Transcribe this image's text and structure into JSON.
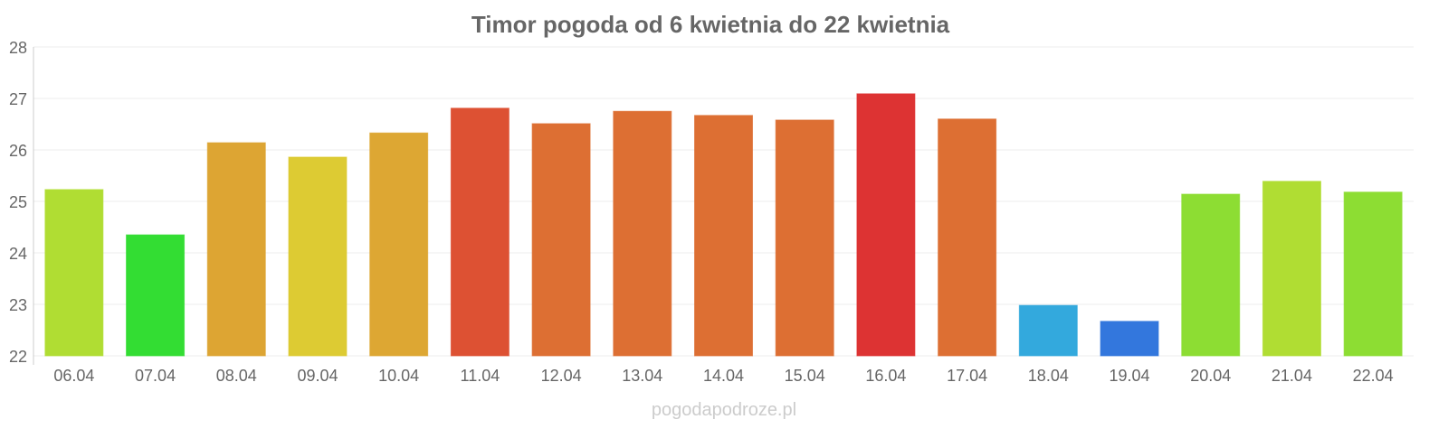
{
  "chart_data": {
    "type": "bar",
    "title": "Timor pogoda od 6 kwietnia do 22 kwietnia",
    "xlabel": "",
    "ylabel": "",
    "ylim": [
      22,
      28
    ],
    "yticks": [
      22,
      23,
      24,
      25,
      26,
      27,
      28
    ],
    "grid": true,
    "categories": [
      "06.04",
      "07.04",
      "08.04",
      "09.04",
      "10.04",
      "11.04",
      "12.04",
      "13.04",
      "14.04",
      "15.04",
      "16.04",
      "17.04",
      "18.04",
      "19.04",
      "20.04",
      "21.04",
      "22.04"
    ],
    "values": [
      25.23,
      24.35,
      26.14,
      25.86,
      26.33,
      26.81,
      26.51,
      26.75,
      26.67,
      26.58,
      27.09,
      26.6,
      22.98,
      22.67,
      25.14,
      25.39,
      25.18
    ],
    "colors": [
      "#b0dd33",
      "#33dd33",
      "#dda533",
      "#ddcb33",
      "#dda733",
      "#dd5133",
      "#dd6f33",
      "#dd6f33",
      "#dd6f33",
      "#dd6f33",
      "#dd3333",
      "#dd6f33",
      "#33a9dd",
      "#3377dd",
      "#8ddd33",
      "#b0dd33",
      "#8ddd33"
    ]
  },
  "watermark": "pogodapodroze.pl"
}
